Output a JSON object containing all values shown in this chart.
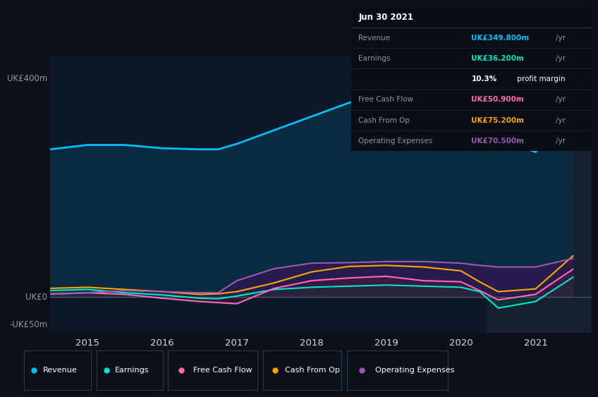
{
  "bg_color": "#0d1117",
  "plot_bg_color": "#0b1929",
  "highlight_bg_color": "#162030",
  "years_x": [
    2014.5,
    2015.0,
    2015.5,
    2016.0,
    2016.5,
    2016.75,
    2017.0,
    2017.5,
    2018.0,
    2018.5,
    2019.0,
    2019.5,
    2020.0,
    2020.25,
    2020.5,
    2021.0,
    2021.5
  ],
  "revenue": [
    270,
    278,
    278,
    272,
    270,
    270,
    280,
    305,
    330,
    355,
    370,
    385,
    390,
    370,
    290,
    265,
    349.8
  ],
  "earnings": [
    12,
    14,
    8,
    4,
    -2,
    -3,
    2,
    14,
    18,
    20,
    22,
    20,
    18,
    10,
    -20,
    -8,
    36.2
  ],
  "free_cash_flow": [
    6,
    8,
    5,
    -2,
    -8,
    -10,
    -12,
    16,
    30,
    35,
    38,
    30,
    28,
    12,
    -5,
    5,
    50.9
  ],
  "cash_from_op": [
    16,
    18,
    14,
    10,
    5,
    6,
    10,
    26,
    46,
    56,
    58,
    55,
    48,
    28,
    10,
    15,
    75.2
  ],
  "operating_expenses": [
    5,
    8,
    12,
    10,
    8,
    8,
    30,
    52,
    62,
    63,
    65,
    65,
    62,
    58,
    55,
    55,
    70.5
  ],
  "revenue_color": "#00bfff",
  "earnings_color": "#00e5cc",
  "free_cash_flow_color": "#ff69b4",
  "cash_from_op_color": "#ffa500",
  "operating_expenses_color": "#9b59b6",
  "revenue_fill": "#0a2a40",
  "earnings_fill": "#003838",
  "operating_expenses_fill": "#2d1a50",
  "free_cash_flow_fill": "#4a1a3a",
  "ylabel_400": "UK£400m",
  "ylabel_0": "UK£0",
  "ylabel_neg50": "-UK£50m",
  "x_ticks": [
    2015,
    2016,
    2017,
    2018,
    2019,
    2020,
    2021
  ],
  "legend_items": [
    "Revenue",
    "Earnings",
    "Free Cash Flow",
    "Cash From Op",
    "Operating Expenses"
  ],
  "legend_colors": [
    "#00bfff",
    "#00e5cc",
    "#ff69b4",
    "#ffa500",
    "#9b59b6"
  ],
  "tooltip_title": "Jun 30 2021",
  "tooltip_revenue_label": "Revenue",
  "tooltip_revenue_value": "UK£349.800m /yr",
  "tooltip_earnings_label": "Earnings",
  "tooltip_earnings_value": "UK£36.200m /yr",
  "tooltip_margin": "10.3% profit margin",
  "tooltip_fcf_label": "Free Cash Flow",
  "tooltip_fcf_value": "UK£50.900m /yr",
  "tooltip_cfop_label": "Cash From Op",
  "tooltip_cfop_value": "UK£75.200m /yr",
  "tooltip_opex_label": "Operating Expenses",
  "tooltip_opex_value": "UK£70.500m /yr",
  "highlight_x_start": 2020.35,
  "highlight_x_end": 2021.75,
  "ylim_min": -65,
  "ylim_max": 440,
  "xlim_min": 2014.5,
  "xlim_max": 2021.75
}
